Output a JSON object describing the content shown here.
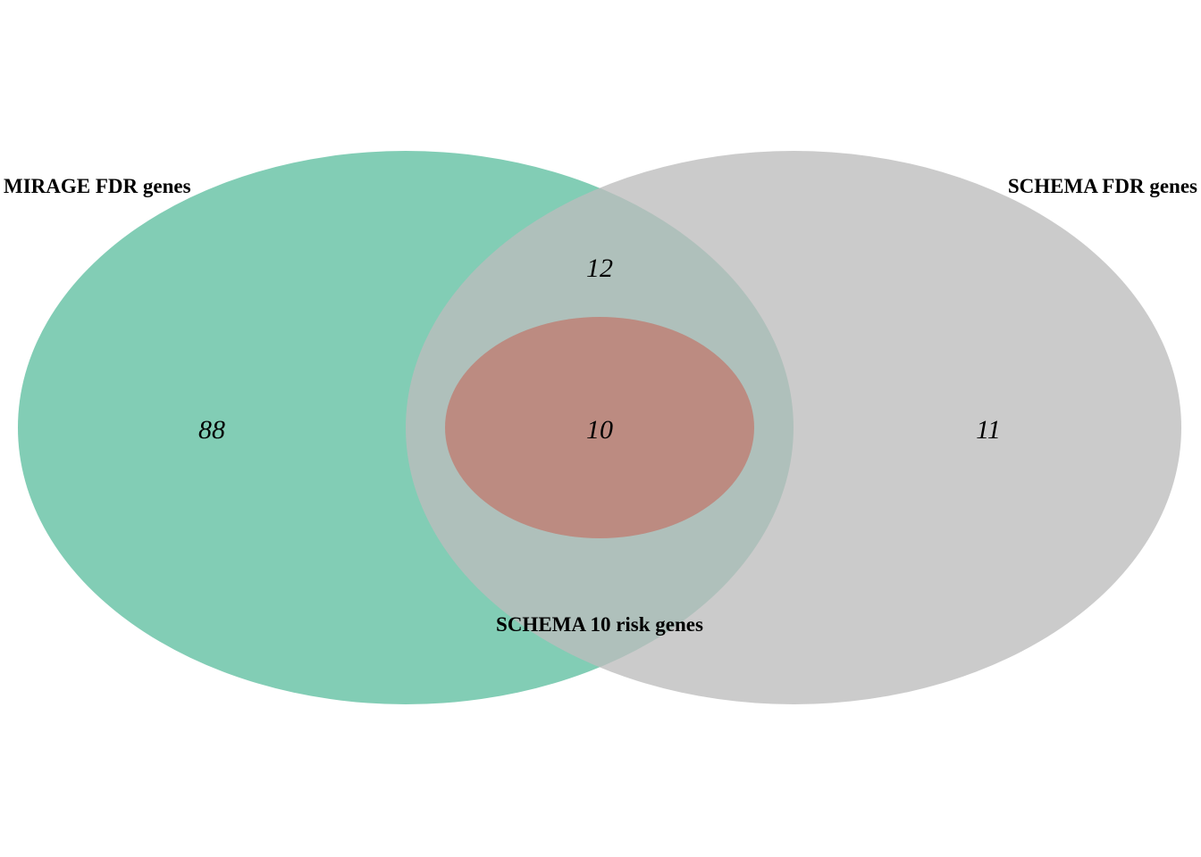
{
  "sets": [
    {
      "id": "mirage",
      "label": "MIRAGE FDR genes",
      "color": "#66c2a5",
      "opacity": 0.82
    },
    {
      "id": "schema_fdr",
      "label": "SCHEMA FDR genes",
      "color": "#bdbdbd",
      "opacity": 0.78
    },
    {
      "id": "schema_10",
      "label": "SCHEMA 10 risk genes",
      "color": "#c07a6e",
      "opacity": 0.75
    }
  ],
  "regions": {
    "mirage_only": "88",
    "mirage_schema_fdr": "12",
    "all_three": "10",
    "schema_fdr_only": "11"
  }
}
